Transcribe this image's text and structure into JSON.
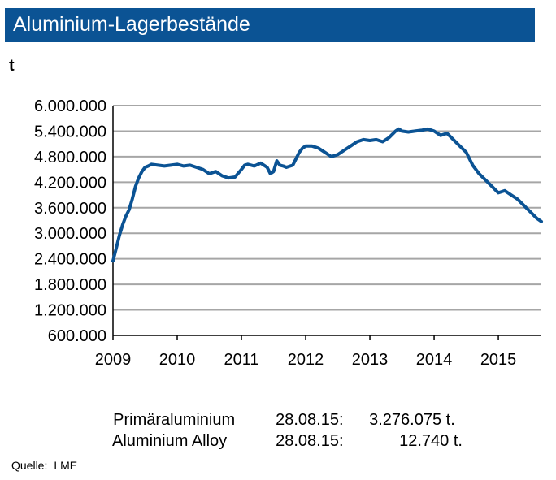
{
  "chart_data": {
    "type": "line",
    "title": "Aluminium-Lagerbestände",
    "ylabel": "t",
    "xlabel": "",
    "ylim": [
      600000,
      6000000
    ],
    "xlim": [
      2009.0,
      2015.67
    ],
    "yticks": [
      "6.000.000",
      "5.400.000",
      "4.800.000",
      "4.200.000",
      "3.600.000",
      "3.000.000",
      "2.400.000",
      "1.800.000",
      "1.200.000",
      "600.000"
    ],
    "ytick_values": [
      6000000,
      5400000,
      4800000,
      4200000,
      3600000,
      3000000,
      2400000,
      1800000,
      1200000,
      600000
    ],
    "xticks": [
      "2009",
      "2010",
      "2011",
      "2012",
      "2013",
      "2014",
      "2015"
    ],
    "xtick_values": [
      2009,
      2010,
      2011,
      2012,
      2013,
      2014,
      2015
    ],
    "grid": "horizontal",
    "line_color": "#0b5394",
    "series": [
      {
        "x": [
          2009.0,
          2009.05,
          2009.1,
          2009.15,
          2009.2,
          2009.25,
          2009.3,
          2009.35,
          2009.4,
          2009.45,
          2009.5,
          2009.55,
          2009.6,
          2009.7,
          2009.8,
          2009.9,
          2010.0,
          2010.1,
          2010.2,
          2010.3,
          2010.4,
          2010.5,
          2010.6,
          2010.7,
          2010.8,
          2010.9,
          2011.0,
          2011.05,
          2011.1,
          2011.2,
          2011.3,
          2011.4,
          2011.45,
          2011.5,
          2011.55,
          2011.6,
          2011.65,
          2011.7,
          2011.8,
          2011.9,
          2011.95,
          2012.0,
          2012.1,
          2012.2,
          2012.3,
          2012.4,
          2012.5,
          2012.6,
          2012.7,
          2012.8,
          2012.9,
          2013.0,
          2013.1,
          2013.2,
          2013.3,
          2013.4,
          2013.45,
          2013.5,
          2013.6,
          2013.7,
          2013.8,
          2013.9,
          2014.0,
          2014.1,
          2014.2,
          2014.3,
          2014.4,
          2014.5,
          2014.6,
          2014.7,
          2014.8,
          2014.9,
          2015.0,
          2015.1,
          2015.2,
          2015.3,
          2015.4,
          2015.5,
          2015.6,
          2015.67
        ],
        "values": [
          2350000,
          2650000,
          2950000,
          3200000,
          3400000,
          3550000,
          3800000,
          4100000,
          4300000,
          4450000,
          4550000,
          4580000,
          4620000,
          4600000,
          4580000,
          4600000,
          4620000,
          4580000,
          4600000,
          4550000,
          4500000,
          4400000,
          4450000,
          4350000,
          4300000,
          4320000,
          4500000,
          4600000,
          4620000,
          4580000,
          4650000,
          4550000,
          4400000,
          4450000,
          4700000,
          4600000,
          4580000,
          4550000,
          4600000,
          4900000,
          5000000,
          5050000,
          5050000,
          5000000,
          4900000,
          4800000,
          4850000,
          4950000,
          5050000,
          5150000,
          5200000,
          5180000,
          5200000,
          5150000,
          5250000,
          5400000,
          5450000,
          5400000,
          5380000,
          5400000,
          5420000,
          5450000,
          5400000,
          5300000,
          5350000,
          5200000,
          5050000,
          4900000,
          4600000,
          4400000,
          4250000,
          4100000,
          3950000,
          4000000,
          3900000,
          3800000,
          3650000,
          3500000,
          3350000,
          3276075
        ]
      }
    ]
  },
  "header": {
    "title": "Aluminium-Lagerbestände",
    "unit": "t"
  },
  "info_rows": [
    {
      "label": "Primäraluminium",
      "date": "28.08.15:",
      "value": "3.276.075 t."
    },
    {
      "label": "Aluminium Alloy",
      "date": "28.08.15:",
      "value": "12.740 t."
    }
  ],
  "source": {
    "label": "Quelle:",
    "value": "LME"
  }
}
